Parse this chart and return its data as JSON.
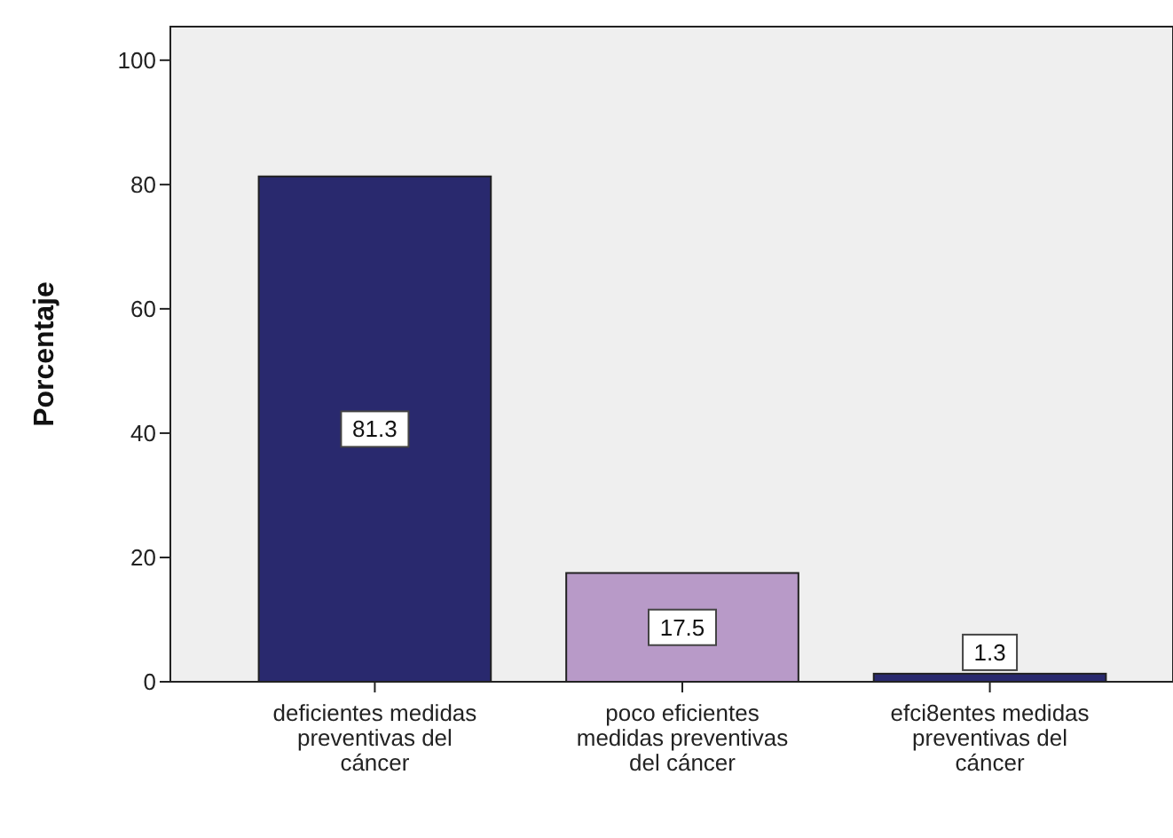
{
  "chart_data": {
    "type": "bar",
    "ylabel": "Porcentaje",
    "categories": [
      "deficientes medidas preventivas del cáncer",
      "poco eficientes medidas preventivas del cáncer",
      "efci8entes medidas preventivas del cáncer"
    ],
    "values": [
      81.3,
      17.5,
      1.3
    ],
    "colors": [
      "#29296e",
      "#b89ac8",
      "#29296e"
    ],
    "ylim": [
      0,
      105.4
    ],
    "yticks": [
      0,
      20,
      40,
      60,
      80,
      100
    ],
    "data_labels": true,
    "grid": false
  }
}
